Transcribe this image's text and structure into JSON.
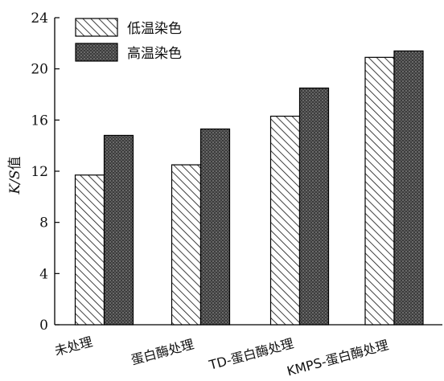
{
  "chart_data": {
    "type": "bar",
    "categories": [
      "未处理",
      "蛋白酶处理",
      "TD-蛋白酶处理",
      "KMPS-蛋白酶处理"
    ],
    "series": [
      {
        "name": "低温染色",
        "values": [
          11.7,
          12.5,
          16.3,
          20.9
        ],
        "pattern": "diagonal-hatch",
        "color": "#ffffff"
      },
      {
        "name": "高温染色",
        "values": [
          14.8,
          15.3,
          18.5,
          21.4
        ],
        "pattern": "dark-crosshatch",
        "color": "#4a4a4a"
      }
    ],
    "yticks": [
      0,
      4,
      8,
      12,
      16,
      20,
      24
    ],
    "ylim": [
      0,
      24
    ],
    "ylabel": {
      "italic": "K/S",
      "normal": "值"
    },
    "xlabel": "",
    "title": "",
    "legend_position": "top-left",
    "grid": false
  }
}
